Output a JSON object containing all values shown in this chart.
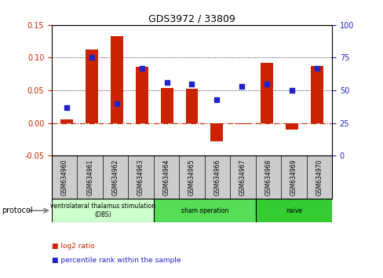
{
  "title": "GDS3972 / 33809",
  "samples": [
    "GSM634960",
    "GSM634961",
    "GSM634962",
    "GSM634963",
    "GSM634964",
    "GSM634965",
    "GSM634966",
    "GSM634967",
    "GSM634968",
    "GSM634969",
    "GSM634970"
  ],
  "log2_ratio": [
    0.005,
    0.113,
    0.133,
    0.086,
    0.054,
    0.052,
    -0.028,
    -0.002,
    0.092,
    -0.01,
    0.087
  ],
  "percentile_rank": [
    37,
    75,
    40,
    67,
    56,
    55,
    43,
    53,
    55,
    50,
    67
  ],
  "ylim_left": [
    -0.05,
    0.15
  ],
  "ylim_right": [
    0,
    100
  ],
  "yticks_left": [
    -0.05,
    0.0,
    0.05,
    0.1,
    0.15
  ],
  "yticks_right": [
    0,
    25,
    50,
    75,
    100
  ],
  "bar_color": "#cc2200",
  "dot_color": "#2222cc",
  "hline_color": "#cc2200",
  "dotline_colors": [
    "black",
    "black"
  ],
  "dotline_values": [
    0.05,
    0.1
  ],
  "group_colors": [
    "#ccffcc",
    "#55dd55",
    "#33cc33"
  ],
  "group_labels": [
    "ventrolateral thalamus stimulation\n(DBS)",
    "sham operation",
    "naive"
  ],
  "group_starts": [
    0,
    4,
    8
  ],
  "group_ends": [
    4,
    8,
    11
  ],
  "legend_bar_label": "log2 ratio",
  "legend_dot_label": "percentile rank within the sample",
  "bar_width": 0.5,
  "protocol_label": "protocol",
  "label_cell_color": "#cccccc",
  "title_fontsize": 9,
  "tick_fontsize": 7,
  "sample_fontsize": 5.5
}
